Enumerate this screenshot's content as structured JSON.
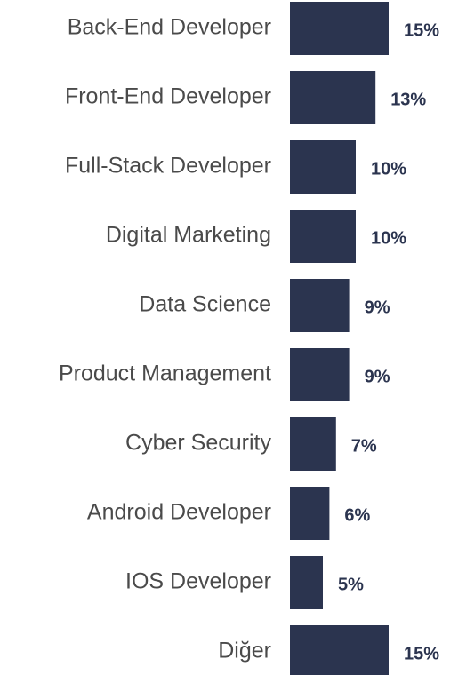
{
  "chart_data": {
    "type": "bar",
    "orientation": "horizontal",
    "categories": [
      "Back-End Developer",
      "Front-End Developer",
      "Full-Stack Developer",
      "Digital Marketing",
      "Data Science",
      "Product Management",
      "Cyber Security",
      "Android Developer",
      "IOS Developer",
      "Diğer"
    ],
    "values": [
      15,
      13,
      10,
      10,
      9,
      9,
      7,
      6,
      5,
      15
    ],
    "value_labels": [
      "15%",
      "13%",
      "10%",
      "10%",
      "9%",
      "9%",
      "7%",
      "6%",
      "5%",
      "15%"
    ],
    "color": "#2b344f"
  }
}
